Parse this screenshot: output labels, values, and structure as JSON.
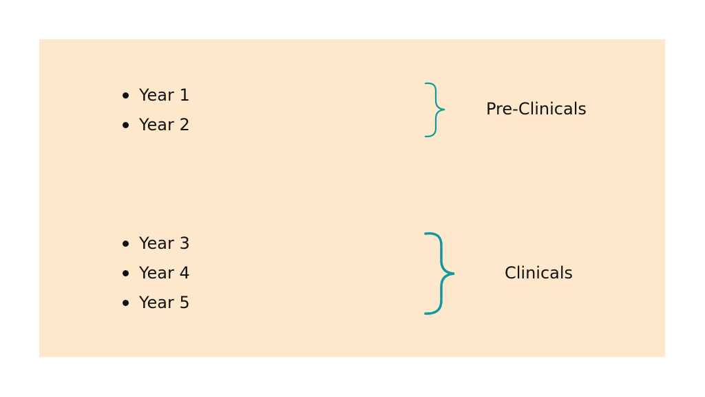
{
  "groups": [
    {
      "items": [
        "Year 1",
        "Year 2"
      ],
      "label": "Pre-Clinicals"
    },
    {
      "items": [
        "Year 3",
        "Year 4",
        "Year 5"
      ],
      "label": "Clinicals"
    }
  ],
  "colors": {
    "background": "#fde8cc",
    "brace": "#11999e",
    "text": "#111111"
  }
}
